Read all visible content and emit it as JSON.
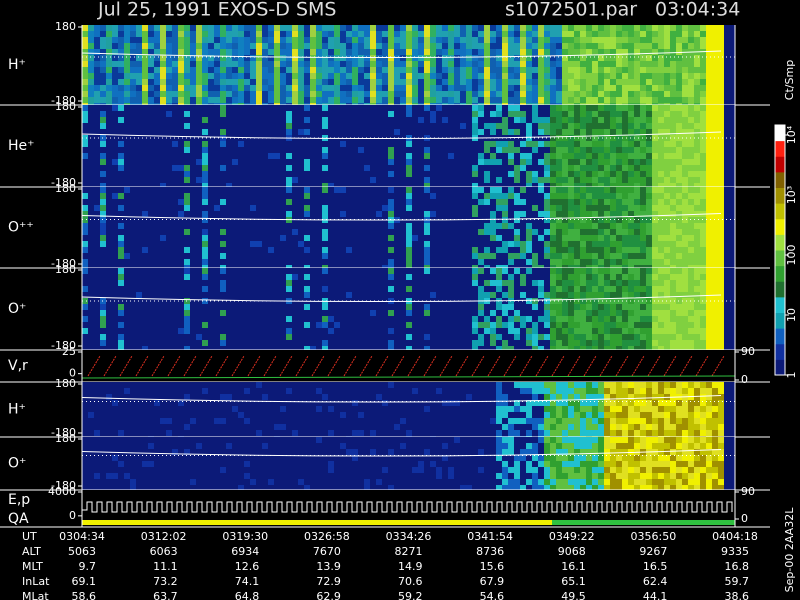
{
  "header": {
    "title": "Jul 25, 1991   EXOS-D SMS",
    "file": "s1072501.par",
    "time": "03:04:34"
  },
  "chart_data": [
    {
      "type": "spectrogram",
      "ylabel": "H⁺",
      "ylim": [
        -180,
        180
      ],
      "yticks": [
        -180,
        180
      ]
    },
    {
      "type": "spectrogram",
      "ylabel": "He⁺",
      "ylim": [
        -180,
        180
      ],
      "yticks": [
        -180,
        180
      ]
    },
    {
      "type": "spectrogram",
      "ylabel": "O⁺⁺",
      "ylim": [
        -180,
        180
      ],
      "yticks": [
        -180,
        180
      ]
    },
    {
      "type": "spectrogram",
      "ylabel": "O⁺",
      "ylim": [
        -180,
        180
      ],
      "yticks": [
        -180,
        180
      ]
    },
    {
      "type": "sawtooth",
      "ylabel": "V,r",
      "ylim": [
        -5,
        25
      ],
      "yticks": [
        0,
        25
      ],
      "y2lim": [
        0,
        90
      ],
      "y2ticks": [
        0,
        90
      ]
    },
    {
      "type": "spectrogram",
      "ylabel": "H⁺",
      "ylim": [
        -180,
        180
      ],
      "yticks": [
        -180,
        180
      ]
    },
    {
      "type": "spectrogram",
      "ylabel": "O⁺",
      "ylim": [
        -180,
        180
      ],
      "yticks": [
        -180,
        180
      ]
    },
    {
      "type": "steps",
      "ylabel": "E,p",
      "ylabel2": "QA",
      "ylim": [
        -1200,
        4000
      ],
      "yticks": [
        0,
        4000
      ],
      "y2lim": [
        -20,
        90
      ],
      "y2ticks": [
        0,
        90
      ]
    }
  ],
  "colorbar": {
    "label": "Ct/Smp",
    "ticks": [
      1,
      10,
      100,
      {
        "value": 1000,
        "label": "10³"
      },
      {
        "value": 10000,
        "label": "10⁴"
      }
    ]
  },
  "orbit_table": {
    "rows": [
      {
        "label": "UT",
        "values": [
          "0304:34",
          "0312:02",
          "0319:30",
          "0326:58",
          "0334:26",
          "0341:54",
          "0349:22",
          "0356:50",
          "0404:18"
        ]
      },
      {
        "label": "ALT",
        "values": [
          5063,
          6063,
          6934,
          7670,
          8271,
          8736,
          9068,
          9267,
          9335
        ]
      },
      {
        "label": "MLT",
        "values": [
          9.7,
          11.1,
          12.6,
          13.9,
          14.9,
          15.6,
          16.1,
          16.5,
          16.8
        ]
      },
      {
        "label": "InLat",
        "values": [
          69.1,
          73.2,
          74.1,
          72.9,
          70.6,
          67.9,
          65.1,
          62.4,
          59.7
        ]
      },
      {
        "label": "MLat",
        "values": [
          58.6,
          63.7,
          64.8,
          62.9,
          59.2,
          54.6,
          49.5,
          44.1,
          38.6
        ]
      }
    ]
  },
  "footer_note": "Sep-00 2AA32L"
}
